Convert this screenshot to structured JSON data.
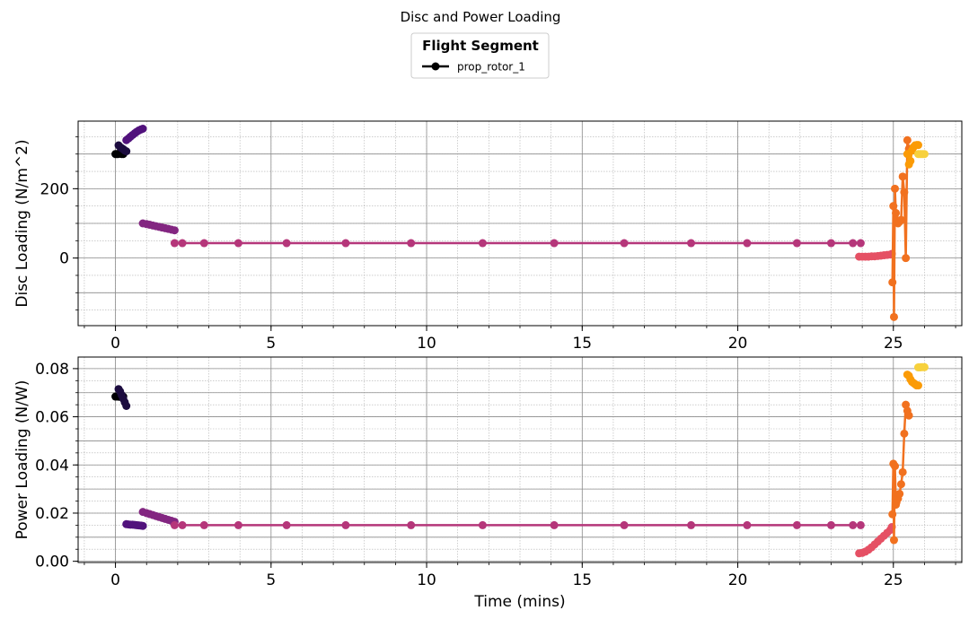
{
  "chart_data": {
    "title": "Disc and Power Loading",
    "legend": {
      "title": "Flight Segment",
      "entries": [
        "prop_rotor_1"
      ],
      "placement": "top-center"
    },
    "type": "line",
    "xlabel": "Time (mins)",
    "grid": true,
    "color_map": [
      "#000004",
      "#1c0c3f",
      "#51127c",
      "#832681",
      "#b5367a",
      "#e55064",
      "#f1711f",
      "#fb9b06",
      "#f7d13d",
      "#fcffa4"
    ],
    "segments": [
      {
        "t": [
          0.0,
          0.04,
          0.08,
          0.12,
          0.16,
          0.2,
          0.25
        ],
        "disc": [
          300,
          300,
          300,
          302,
          301,
          300,
          300
        ],
        "power": [
          0.0684,
          0.0684,
          0.0684,
          0.0683,
          0.0684,
          0.0684,
          0.0684
        ]
      },
      {
        "t": [
          0.1,
          0.15,
          0.2,
          0.25,
          0.3,
          0.35
        ],
        "disc": [
          325,
          320,
          317,
          314,
          310,
          308
        ],
        "power": [
          0.0715,
          0.0705,
          0.069,
          0.0675,
          0.066,
          0.0645
        ]
      },
      {
        "t": [
          0.35,
          0.42,
          0.48,
          0.55,
          0.62,
          0.68,
          0.75,
          0.82,
          0.88
        ],
        "disc": [
          340,
          345,
          350,
          355,
          360,
          364,
          368,
          371,
          373
        ],
        "power": [
          0.0154,
          0.0153,
          0.0152,
          0.0152,
          0.0151,
          0.015,
          0.0149,
          0.0148,
          0.0147
        ]
      },
      {
        "t": [
          0.88,
          1.0,
          1.1,
          1.2,
          1.3,
          1.4,
          1.5,
          1.6,
          1.7,
          1.8,
          1.9
        ],
        "disc": [
          100,
          98,
          96,
          94,
          92,
          90,
          88,
          86,
          84,
          82,
          80
        ],
        "power": [
          0.0205,
          0.02,
          0.0196,
          0.0192,
          0.0188,
          0.0184,
          0.018,
          0.0176,
          0.0172,
          0.0168,
          0.0164
        ]
      },
      {
        "t": [
          1.9,
          2.15,
          2.85,
          3.95,
          5.5,
          7.4,
          9.5,
          11.8,
          14.1,
          16.35,
          18.5,
          20.3,
          21.9,
          23.0,
          23.7,
          23.95
        ],
        "disc": [
          43,
          43,
          43,
          43,
          43,
          43,
          43,
          43,
          43,
          43,
          43,
          43,
          43,
          43,
          43,
          43
        ],
        "power": [
          0.015,
          0.015,
          0.015,
          0.015,
          0.015,
          0.015,
          0.015,
          0.015,
          0.015,
          0.015,
          0.015,
          0.015,
          0.015,
          0.015,
          0.015,
          0.015
        ]
      },
      {
        "t": [
          23.9,
          24.0,
          24.1,
          24.2,
          24.3,
          24.4,
          24.5,
          24.6,
          24.7,
          24.8,
          24.9,
          24.95
        ],
        "disc": [
          4,
          4,
          4,
          4,
          5,
          5,
          6,
          7,
          8,
          9,
          10,
          12
        ],
        "power": [
          0.0033,
          0.0035,
          0.004,
          0.0048,
          0.0058,
          0.007,
          0.0082,
          0.0094,
          0.0106,
          0.0118,
          0.013,
          0.0142
        ]
      },
      {
        "t": [
          24.97,
          25.0,
          25.02,
          25.05,
          25.08,
          25.1,
          25.15,
          25.2,
          25.25,
          25.3,
          25.35,
          25.4,
          25.45,
          25.5
        ],
        "disc": [
          -70,
          150,
          -170,
          200,
          130,
          110,
          100,
          105,
          110,
          235,
          190,
          0,
          340,
          315
        ],
        "power": [
          0.0195,
          0.0405,
          0.0088,
          0.0395,
          0.0235,
          0.0245,
          0.026,
          0.028,
          0.032,
          0.037,
          0.053,
          0.065,
          0.0625,
          0.0605
        ]
      },
      {
        "t": [
          25.45,
          25.5,
          25.55,
          25.6,
          25.65,
          25.7,
          25.75,
          25.8
        ],
        "disc": [
          300,
          270,
          280,
          310,
          320,
          325,
          326,
          326
        ],
        "power": [
          0.0775,
          0.077,
          0.0755,
          0.0745,
          0.074,
          0.0735,
          0.073,
          0.073
        ]
      },
      {
        "t": [
          25.8,
          25.85,
          25.9,
          25.95,
          26.0
        ],
        "disc": [
          300,
          300,
          300,
          300,
          300
        ],
        "power": [
          0.0805,
          0.0805,
          0.0806,
          0.0806,
          0.0806
        ]
      }
    ],
    "panels": [
      {
        "ylabel": "Disc Loading (N/m^2)",
        "xlim": [
          -1.2,
          27.2
        ],
        "ylim": [
          -195,
          395
        ],
        "yticks": [
          0,
          200
        ],
        "ytick_labels": [
          "0",
          "200"
        ],
        "xticks": [
          0,
          5,
          10,
          15,
          20,
          25
        ],
        "xtick_labels": [
          "0",
          "5",
          "10",
          "15",
          "20",
          "25"
        ]
      },
      {
        "ylabel": "Power Loading (N/W)",
        "xlim": [
          -1.2,
          27.2
        ],
        "ylim": [
          -0.0005,
          0.0848
        ],
        "yticks": [
          0.0,
          0.02,
          0.04,
          0.06,
          0.08
        ],
        "ytick_labels": [
          "0.00",
          "0.02",
          "0.04",
          "0.06",
          "0.08"
        ],
        "xticks": [
          0,
          5,
          10,
          15,
          20,
          25
        ],
        "xtick_labels": [
          "0",
          "5",
          "10",
          "15",
          "20",
          "25"
        ]
      }
    ]
  }
}
